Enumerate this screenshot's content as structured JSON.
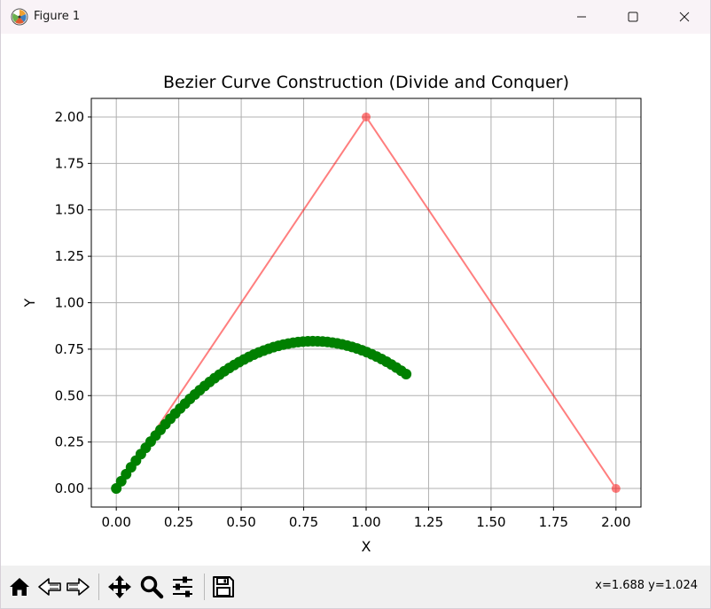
{
  "window": {
    "title": "Figure 1",
    "icon": "matplotlib-logo-icon",
    "controls": [
      "minimize-icon",
      "maximize-icon",
      "close-icon"
    ]
  },
  "toolbar": {
    "tools": [
      "home-icon",
      "back-icon",
      "forward-icon",
      "pan-icon",
      "zoom-icon",
      "subplots-icon",
      "save-icon"
    ],
    "coords": "x=1.688 y=1.024"
  },
  "colors": {
    "control_polygon": "#ff0000",
    "curve": "#008000",
    "grid": "#b0b0b0"
  },
  "chart_data": {
    "type": "line",
    "title": "Bezier Curve Construction (Divide and Conquer)",
    "xlabel": "X",
    "ylabel": "Y",
    "xlim": [
      -0.1,
      2.1
    ],
    "ylim": [
      -0.1,
      2.1
    ],
    "xticks": [
      0.0,
      0.25,
      0.5,
      0.75,
      1.0,
      1.25,
      1.5,
      1.75,
      2.0
    ],
    "yticks": [
      0.0,
      0.25,
      0.5,
      0.75,
      1.0,
      1.25,
      1.5,
      1.75,
      2.0
    ],
    "xtick_labels": [
      "0.00",
      "0.25",
      "0.50",
      "0.75",
      "1.00",
      "1.25",
      "1.50",
      "1.75",
      "2.00"
    ],
    "ytick_labels": [
      "0.00",
      "0.25",
      "0.50",
      "0.75",
      "1.00",
      "1.25",
      "1.50",
      "1.75",
      "2.00"
    ],
    "grid": true,
    "series": [
      {
        "kind": "control_polygon",
        "style": "line+markers",
        "color": "#ff0000",
        "alpha": 0.5,
        "points": [
          [
            0.0,
            0.0
          ],
          [
            1.0,
            2.0
          ],
          [
            2.0,
            0.0
          ]
        ]
      },
      {
        "kind": "curve_points",
        "style": "line+markers",
        "color": "#008000",
        "t_range": [
          0.0,
          0.58
        ],
        "point_count": 60,
        "points": [
          [
            0.0,
            0.0
          ],
          [
            0.0197,
            0.039
          ],
          [
            0.0393,
            0.0771
          ],
          [
            0.059,
            0.1141
          ],
          [
            0.0786,
            0.1502
          ],
          [
            0.0983,
            0.1853
          ],
          [
            0.118,
            0.2194
          ],
          [
            0.1376,
            0.2525
          ],
          [
            0.1573,
            0.2847
          ],
          [
            0.1769,
            0.3158
          ],
          [
            0.1966,
            0.346
          ],
          [
            0.2163,
            0.3752
          ],
          [
            0.2359,
            0.4034
          ],
          [
            0.2556,
            0.4306
          ],
          [
            0.2753,
            0.4568
          ],
          [
            0.2949,
            0.4821
          ],
          [
            0.3146,
            0.5063
          ],
          [
            0.3342,
            0.5296
          ],
          [
            0.3539,
            0.5519
          ],
          [
            0.3736,
            0.5732
          ],
          [
            0.3932,
            0.5935
          ],
          [
            0.4129,
            0.6129
          ],
          [
            0.4325,
            0.6312
          ],
          [
            0.4522,
            0.6486
          ],
          [
            0.4719,
            0.665
          ],
          [
            0.4915,
            0.6804
          ],
          [
            0.5112,
            0.6948
          ],
          [
            0.5308,
            0.7082
          ],
          [
            0.5505,
            0.7206
          ],
          [
            0.5702,
            0.7321
          ],
          [
            0.5898,
            0.7425
          ],
          [
            0.6095,
            0.752
          ],
          [
            0.6292,
            0.7605
          ],
          [
            0.6488,
            0.768
          ],
          [
            0.6685,
            0.7745
          ],
          [
            0.6881,
            0.78
          ],
          [
            0.7078,
            0.7846
          ],
          [
            0.7275,
            0.7881
          ],
          [
            0.7471,
            0.7907
          ],
          [
            0.7668,
            0.7923
          ],
          [
            0.7864,
            0.7929
          ],
          [
            0.8061,
            0.7925
          ],
          [
            0.8258,
            0.7911
          ],
          [
            0.8454,
            0.7887
          ],
          [
            0.8651,
            0.7853
          ],
          [
            0.8847,
            0.7809
          ],
          [
            0.9044,
            0.7756
          ],
          [
            0.9241,
            0.7692
          ],
          [
            0.9437,
            0.7619
          ],
          [
            0.9634,
            0.7535
          ],
          [
            0.9831,
            0.7442
          ],
          [
            1.0027,
            0.7339
          ],
          [
            1.0224,
            0.7226
          ],
          [
            1.042,
            0.7103
          ],
          [
            1.0617,
            0.697
          ],
          [
            1.0814,
            0.6827
          ],
          [
            1.101,
            0.6674
          ],
          [
            1.1207,
            0.6511
          ],
          [
            1.1403,
            0.6339
          ],
          [
            1.16,
            0.6156
          ]
        ]
      }
    ]
  }
}
